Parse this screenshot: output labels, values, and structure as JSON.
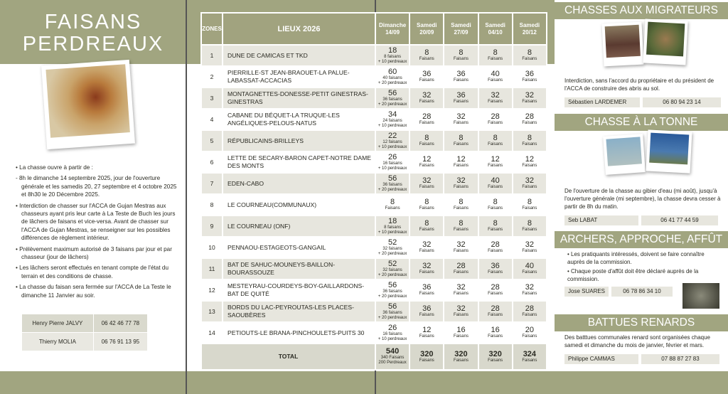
{
  "left": {
    "title_line1": "FAISANS",
    "title_line2": "PERDREAUX",
    "bullets": [
      "• La chasse ouvre à partir de :",
      "- 8h le dimanche 14 septembre 2025, jour de l'ouverture générale et les samedis 20, 27 septembre et 4 octobre 2025 et 8h30 le 20 Décembre 2025.",
      "• Interdiction de chasser sur l'ACCA de Gujan Mestras aux chasseurs ayant pris leur carte à La Teste de Buch les jours de lâchers de faisans et vice-versa. Avant de chasser sur l'ACCA de Gujan Mestras, se renseigner sur les possibles différences de règlement intérieur.",
      "• Prélèvement maximum autorisé de 3 faisans par jour et par chasseur (jour de lâchers)",
      "• Les lâchers seront effectués en tenant compte de l'état du terrain et des conditions de chasse.",
      "• La chasse du faisan sera fermée sur l'ACCA de La Teste le dimanche 11 Janvier au soir."
    ],
    "contacts": [
      {
        "name": "Henry Pierre JALVY",
        "phone": "06 42 46 77 78"
      },
      {
        "name": "Thierry MOLIA",
        "phone": "06 76 91 13 95"
      }
    ]
  },
  "table": {
    "headers": [
      "ZONES",
      "LIEUX 2026",
      "Dimanche 14/09",
      "Samedi 20/09",
      "Samedi 27/09",
      "Samedi 04/10",
      "Samedi 20/12"
    ],
    "unit": "Faisans",
    "rows": [
      {
        "zone": "1",
        "lieu": "DUNE DE CAMICAS ET TKD",
        "d1": "18",
        "d1_detail": [
          "8 faisans",
          "+ 10 perdreaux"
        ],
        "v": [
          "8",
          "8",
          "8",
          "8"
        ]
      },
      {
        "zone": "2",
        "lieu": "PIERRILLE-ST JEAN-BRAOUET-LA PALUE-LABASSAT-ACCACIAS",
        "d1": "60",
        "d1_detail": [
          "40 faisans",
          "+ 20 perdreaux"
        ],
        "v": [
          "36",
          "36",
          "40",
          "36"
        ]
      },
      {
        "zone": "3",
        "lieu": "MONTAGNETTES-DONESSE-PETIT GINESTRAS-GINESTRAS",
        "d1": "56",
        "d1_detail": [
          "36 faisans",
          "+ 20 perdreaux"
        ],
        "v": [
          "32",
          "36",
          "32",
          "32"
        ]
      },
      {
        "zone": "4",
        "lieu": "CABANE DU BÉQUET-LA TRUQUE-LES ANGÉLIQUES-PELOUS-NATUS",
        "d1": "34",
        "d1_detail": [
          "24 faisans",
          "+ 10 perdreaux"
        ],
        "v": [
          "28",
          "32",
          "28",
          "28"
        ]
      },
      {
        "zone": "5",
        "lieu": "RÉPUBLICAINS-BRILLEYS",
        "d1": "22",
        "d1_detail": [
          "12 faisans",
          "+ 10 perdreaux"
        ],
        "v": [
          "8",
          "8",
          "8",
          "8"
        ]
      },
      {
        "zone": "6",
        "lieu": "LETTE DE SECARY-BARON CAPET-NOTRE DAME DES MONTS",
        "d1": "26",
        "d1_detail": [
          "16 faisans",
          "+ 10 perdreaux"
        ],
        "v": [
          "12",
          "12",
          "12",
          "12"
        ]
      },
      {
        "zone": "7",
        "lieu": "EDEN-CABO",
        "d1": "56",
        "d1_detail": [
          "36 faisans",
          "+ 20 perdreaux"
        ],
        "v": [
          "32",
          "32",
          "40",
          "32"
        ]
      },
      {
        "zone": "8",
        "lieu": "LE COURNEAU(COMMUNAUX)",
        "d1": "8",
        "d1_detail": [
          "Faisans"
        ],
        "v": [
          "8",
          "8",
          "8",
          "8"
        ]
      },
      {
        "zone": "9",
        "lieu": "LE COURNEAU (ONF)",
        "d1": "18",
        "d1_detail": [
          "8 faisans",
          "+ 10 perdreaux"
        ],
        "v": [
          "8",
          "8",
          "8",
          "8"
        ]
      },
      {
        "zone": "10",
        "lieu": "PENNAOU-ESTAGEOTS-GANGAIL",
        "d1": "52",
        "d1_detail": [
          "32 faisans",
          "+ 20 perdreaux"
        ],
        "v": [
          "32",
          "32",
          "28",
          "32"
        ]
      },
      {
        "zone": "11",
        "lieu": "BAT DE SAHUC-MOUNEYS-BAILLON-BOURASSOUZE",
        "d1": "52",
        "d1_detail": [
          "32 faisans",
          "+ 20 perdreaux"
        ],
        "v": [
          "32",
          "28",
          "36",
          "40"
        ]
      },
      {
        "zone": "12",
        "lieu": "MESTEYRAU-COURDEYS-BOY-GAILLARDONS-BAT DE QUITÉ",
        "d1": "56",
        "d1_detail": [
          "36 faisans",
          "+ 20 perdreaux"
        ],
        "v": [
          "36",
          "32",
          "28",
          "32"
        ]
      },
      {
        "zone": "13",
        "lieu": "BORDS DU LAC-PEYROUTAS-LES PLACES-SAOUBÈRES",
        "d1": "56",
        "d1_detail": [
          "36 faisans",
          "+ 20 perdreaux"
        ],
        "v": [
          "36",
          "32",
          "28",
          "28"
        ]
      },
      {
        "zone": "14",
        "lieu": "PETIOUTS-LE BRANA-PINCHOULETS-PUITS 30",
        "d1": "26",
        "d1_detail": [
          "16 faisans",
          "+ 10 perdreaux"
        ],
        "v": [
          "12",
          "16",
          "16",
          "20"
        ]
      }
    ],
    "total": {
      "label": "TOTAL",
      "d1": "540",
      "d1_detail": [
        "340 Faisans",
        "200 Perdreaux"
      ],
      "v": [
        "320",
        "320",
        "320",
        "324"
      ]
    }
  },
  "right": {
    "migrateurs": {
      "title": "CHASSES AUX MIGRATEURS",
      "text": "Interdiction, sans l'accord du propriétaire et du président de l'ACCA de construire des abris au sol.",
      "name": "Sébastien LARDEMER",
      "phone": "06 80 94 23 14"
    },
    "tonne": {
      "title": "CHASSE À LA TONNE",
      "text": "De l'ouverture de la chasse au gibier d'eau (mi août), jusqu'à l'ouverture générale (mi septembre), la chasse devra cesser à partir de 8h du matin.",
      "name": "Seb LABAT",
      "phone": "06 41 77 44 59"
    },
    "archers": {
      "title": "ARCHERS, APPROCHE, AFFÛT",
      "bullets": [
        "• Les pratiquants intéressés, doivent se faire connaître auprès de la commission.",
        "• Chaque poste d'affût doit être déclaré auprès de la commission."
      ],
      "name": "Jose SUARES",
      "phone": "06 78 86 34 10"
    },
    "renards": {
      "title": "BATTUES RENARDS",
      "text": "Des batttues communales renard sont organisées chaque samedi et dimanche du mois de janvier, février et mars.",
      "name": "Philippe CAMMAS",
      "phone": "07 88 87 27 83"
    }
  },
  "colors": {
    "olive": "#a1a580",
    "row_grey": "#e7e6de"
  }
}
